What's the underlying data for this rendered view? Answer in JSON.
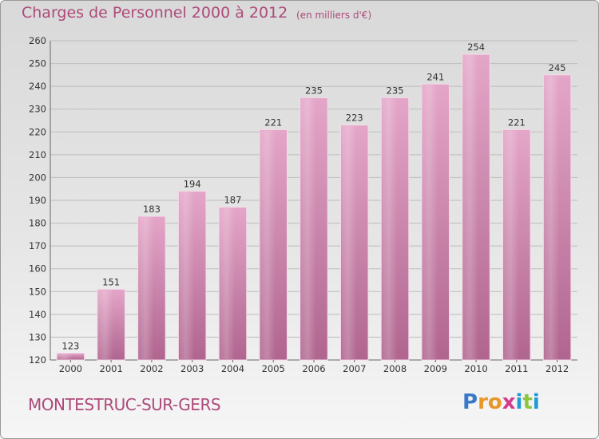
{
  "header": {
    "title": "Charges de Personnel 2000 à 2012",
    "subtitle": "(en milliers d'€)"
  },
  "footer": {
    "town": "MONTESTRUC-SUR-GERS",
    "logo_letters": [
      "P",
      "r",
      "o",
      "x",
      "i",
      "t",
      "i"
    ],
    "logo_colors": [
      "#3a78c8",
      "#e8962a",
      "#e8962a",
      "#d43a8c",
      "#1e9ad6",
      "#8cc63f",
      "#1e9ad6"
    ]
  },
  "chart_data": {
    "type": "bar",
    "categories": [
      "2000",
      "2001",
      "2002",
      "2003",
      "2004",
      "2005",
      "2006",
      "2007",
      "2008",
      "2009",
      "2010",
      "2011",
      "2012"
    ],
    "values": [
      123,
      151,
      183,
      194,
      187,
      221,
      235,
      223,
      235,
      241,
      254,
      221,
      245
    ],
    "ylim": [
      120,
      260
    ],
    "yticks": [
      120,
      130,
      140,
      150,
      160,
      170,
      180,
      190,
      200,
      210,
      220,
      230,
      240,
      250,
      260
    ],
    "grid": true,
    "bar_color": "#d88ab4",
    "legend": "none"
  }
}
